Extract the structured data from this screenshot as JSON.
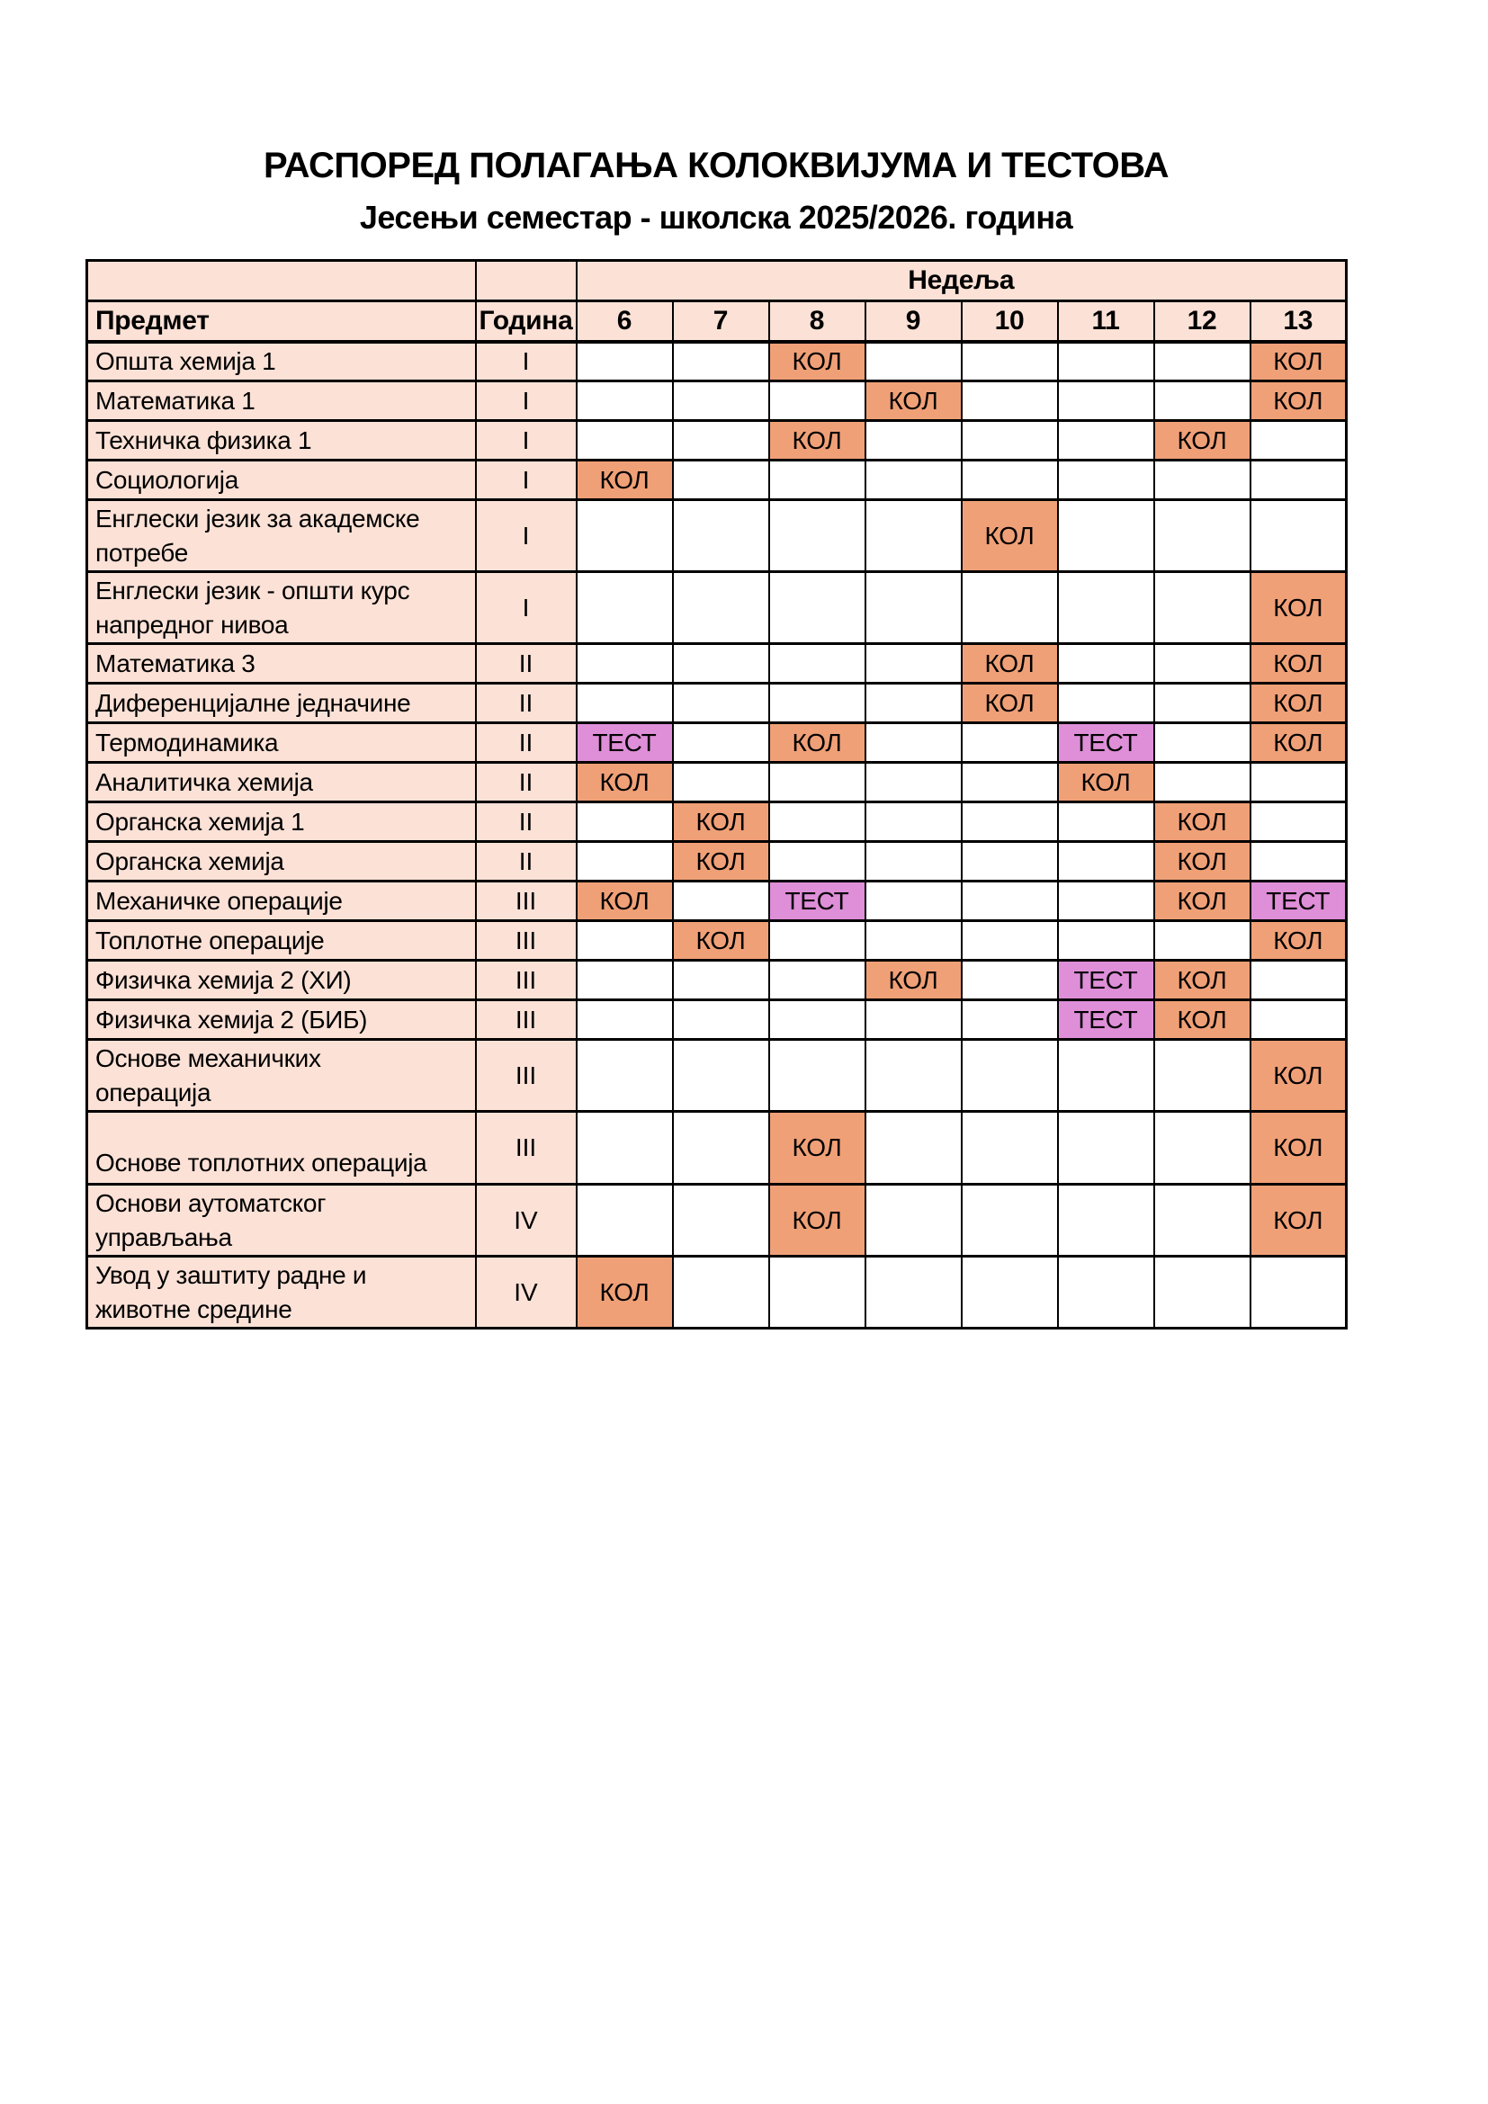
{
  "page": {
    "title": "РАСПОРЕД ПОЛАГАЊА КОЛОКВИЈУМА И ТЕСТОВА",
    "subtitle": "Јесењи семестар - школска 2025/2026. година"
  },
  "table": {
    "week_group_label": "Недеља",
    "subject_header": "Предмет",
    "year_header": "Година",
    "weeks": [
      "6",
      "7",
      "8",
      "9",
      "10",
      "11",
      "12",
      "13"
    ],
    "mark_labels": {
      "kol": "КОЛ",
      "test": "ТЕСТ"
    },
    "colors": {
      "header_bg": "#fbe1d6",
      "kol_bg": "#f0a077",
      "test_bg": "#de8fd8",
      "border": "#000000",
      "page_bg": "#ffffff"
    },
    "rows": [
      {
        "subject_lines": [
          "Општа хемија 1"
        ],
        "year": "I",
        "tall": false,
        "marks": [
          {
            "week": "8",
            "type": "kol"
          },
          {
            "week": "13",
            "type": "kol"
          }
        ]
      },
      {
        "subject_lines": [
          "Математика 1"
        ],
        "year": "I",
        "tall": false,
        "marks": [
          {
            "week": "9",
            "type": "kol"
          },
          {
            "week": "13",
            "type": "kol"
          }
        ]
      },
      {
        "subject_lines": [
          "Техничка физика 1"
        ],
        "year": "I",
        "tall": false,
        "marks": [
          {
            "week": "8",
            "type": "kol"
          },
          {
            "week": "12",
            "type": "kol"
          }
        ]
      },
      {
        "subject_lines": [
          "Социологија"
        ],
        "year": "I",
        "tall": false,
        "marks": [
          {
            "week": "6",
            "type": "kol"
          }
        ]
      },
      {
        "subject_lines": [
          "Енглески језик за академске",
          "потребе"
        ],
        "year": "I",
        "tall": true,
        "marks": [
          {
            "week": "10",
            "type": "kol"
          }
        ]
      },
      {
        "subject_lines": [
          "Енглески језик - општи курс",
          "напредног нивоа"
        ],
        "year": "I",
        "tall": true,
        "marks": [
          {
            "week": "13",
            "type": "kol"
          }
        ]
      },
      {
        "subject_lines": [
          "Математика 3"
        ],
        "year": "II",
        "tall": false,
        "marks": [
          {
            "week": "10",
            "type": "kol"
          },
          {
            "week": "13",
            "type": "kol"
          }
        ]
      },
      {
        "subject_lines": [
          "Диференцијалне једначине"
        ],
        "year": "II",
        "tall": false,
        "marks": [
          {
            "week": "10",
            "type": "kol"
          },
          {
            "week": "13",
            "type": "kol"
          }
        ]
      },
      {
        "subject_lines": [
          "Термодинамика"
        ],
        "year": "II",
        "tall": false,
        "marks": [
          {
            "week": "6",
            "type": "test"
          },
          {
            "week": "8",
            "type": "kol"
          },
          {
            "week": "11",
            "type": "test"
          },
          {
            "week": "13",
            "type": "kol"
          }
        ]
      },
      {
        "subject_lines": [
          "Аналитичка хемија"
        ],
        "year": "II",
        "tall": false,
        "marks": [
          {
            "week": "6",
            "type": "kol"
          },
          {
            "week": "11",
            "type": "kol"
          }
        ]
      },
      {
        "subject_lines": [
          "Органска хемија 1"
        ],
        "year": "II",
        "tall": false,
        "marks": [
          {
            "week": "7",
            "type": "kol"
          },
          {
            "week": "12",
            "type": "kol"
          }
        ]
      },
      {
        "subject_lines": [
          "Органска хемија"
        ],
        "year": "II",
        "tall": false,
        "marks": [
          {
            "week": "7",
            "type": "kol"
          },
          {
            "week": "12",
            "type": "kol"
          }
        ]
      },
      {
        "subject_lines": [
          "Механичке операције"
        ],
        "year": "III",
        "tall": false,
        "marks": [
          {
            "week": "6",
            "type": "kol"
          },
          {
            "week": "8",
            "type": "test"
          },
          {
            "week": "12",
            "type": "kol"
          },
          {
            "week": "13",
            "type": "test"
          }
        ]
      },
      {
        "subject_lines": [
          "Топлотне операције"
        ],
        "year": "III",
        "tall": false,
        "marks": [
          {
            "week": "7",
            "type": "kol"
          },
          {
            "week": "13",
            "type": "kol"
          }
        ]
      },
      {
        "subject_lines": [
          "Физичка хемија 2 (ХИ)"
        ],
        "year": "III",
        "tall": false,
        "marks": [
          {
            "week": "9",
            "type": "kol"
          },
          {
            "week": "11",
            "type": "test"
          },
          {
            "week": "12",
            "type": "kol"
          }
        ]
      },
      {
        "subject_lines": [
          "Физичка хемија 2 (БИБ)"
        ],
        "year": "III",
        "tall": false,
        "marks": [
          {
            "week": "11",
            "type": "test"
          },
          {
            "week": "12",
            "type": "kol"
          }
        ]
      },
      {
        "subject_lines": [
          "Основе механичких",
          "операција"
        ],
        "year": "III",
        "tall": true,
        "marks": [
          {
            "week": "13",
            "type": "kol"
          }
        ]
      },
      {
        "subject_lines": [
          "Основе топлотних операција"
        ],
        "year": "III",
        "tall": true,
        "subject_valign": "bottom",
        "marks": [
          {
            "week": "8",
            "type": "kol"
          },
          {
            "week": "13",
            "type": "kol"
          }
        ]
      },
      {
        "subject_lines": [
          "Основи аутоматског",
          "управљања"
        ],
        "year": "IV",
        "tall": true,
        "marks": [
          {
            "week": "8",
            "type": "kol"
          },
          {
            "week": "13",
            "type": "kol"
          }
        ]
      },
      {
        "subject_lines": [
          "Увод у заштиту радне и",
          "животне средине"
        ],
        "year": "IV",
        "tall": true,
        "marks": [
          {
            "week": "6",
            "type": "kol"
          }
        ]
      }
    ]
  }
}
